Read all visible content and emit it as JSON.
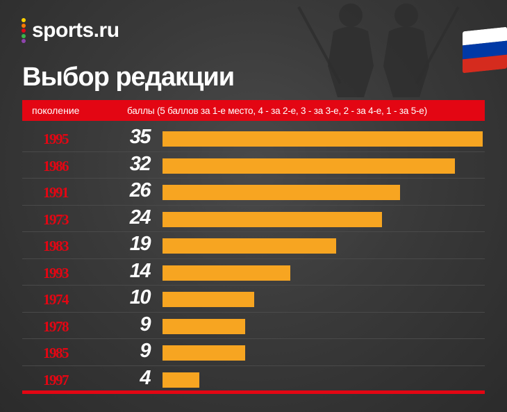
{
  "brand": {
    "name": "sports.ru",
    "dot_colors": [
      "#ffd200",
      "#ff7a00",
      "#e30613",
      "#3cb44b",
      "#8e44ad"
    ]
  },
  "flag": {
    "colors": [
      "#ffffff",
      "#0039a6",
      "#d52b1e"
    ]
  },
  "colors": {
    "accent": "#e30613",
    "bar": "#f7a521",
    "text": "#ffffff"
  },
  "chart_data": {
    "type": "bar",
    "orientation": "horizontal",
    "title": "Выбор редакции",
    "category_header": "поколение",
    "value_header": "баллы (5 баллов за 1-е место, 4 - за 2-е, 3 - за 3-е, 2 - за 4-е, 1 - за 5-е)",
    "categories": [
      "1995",
      "1986",
      "1991",
      "1973",
      "1983",
      "1993",
      "1974",
      "1978",
      "1985",
      "1997"
    ],
    "values": [
      35,
      32,
      26,
      24,
      19,
      14,
      10,
      9,
      9,
      4
    ],
    "xlim": [
      0,
      35
    ],
    "grid": false
  }
}
